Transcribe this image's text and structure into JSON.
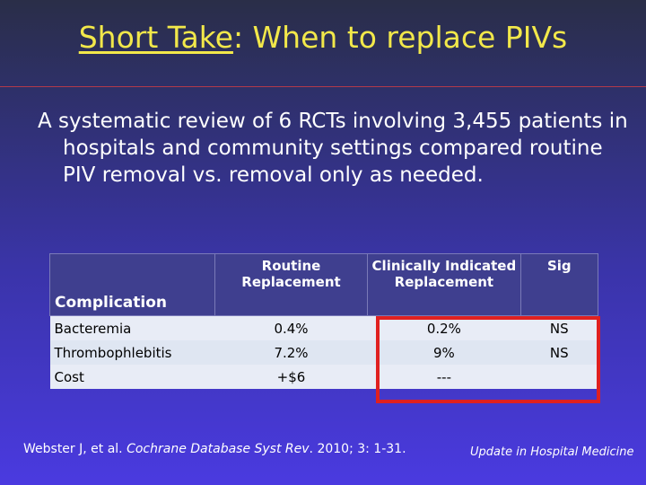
{
  "slide": {
    "title_underlined": "Short Take",
    "title_rest": ": When to replace PIVs",
    "body": "A systematic review of 6 RCTs involving 3,455 patients in hospitals and community settings compared routine PIV removal vs. removal only as needed."
  },
  "table": {
    "headers": {
      "complication": "Complication",
      "routine": "Routine Replacement",
      "clinical": "Clinically Indicated Replacement",
      "sig": "Sig"
    },
    "rows": [
      {
        "complication": "Bacteremia",
        "routine": "0.4%",
        "clinical": "0.2%",
        "sig": "NS"
      },
      {
        "complication": "Thrombophlebitis",
        "routine": "7.2%",
        "clinical": "9%",
        "sig": "NS"
      },
      {
        "complication": "Cost",
        "routine": "+$6",
        "clinical": "---",
        "sig": ""
      }
    ]
  },
  "footer": {
    "citation_pre": "Webster J, et al. ",
    "citation_journal": "Cochrane Database Syst Rev",
    "citation_post": ". 2010; 3: 1-31.",
    "brand": "Update in Hospital Medicine"
  },
  "colors": {
    "title": "#f2e84a",
    "highlight_box": "#e02020",
    "header_bg": "#3f3f8f"
  }
}
